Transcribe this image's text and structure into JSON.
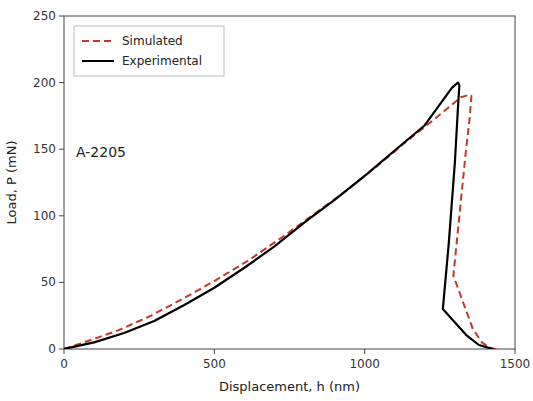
{
  "chart_data": {
    "type": "line",
    "xlabel": "Displacement, h (nm)",
    "ylabel": "Load, P (mN)",
    "annotation": "A-2205",
    "xlim": [
      0,
      1500
    ],
    "ylim": [
      0,
      250
    ],
    "xticks": [
      0,
      500,
      1000,
      1500
    ],
    "yticks": [
      0,
      50,
      100,
      150,
      200,
      250
    ],
    "grid": false,
    "legend": "upper left",
    "series": [
      {
        "name": "Simulated",
        "color": "#c0392b",
        "line_style": "dashed",
        "x": [
          0,
          80,
          180,
          280,
          390,
          500,
          610,
          720,
          830,
          940,
          1040,
          1140,
          1240,
          1320,
          1350,
          1355,
          1350,
          1335,
          1315,
          1295,
          1360,
          1390,
          1415,
          1430,
          1440
        ],
        "values": [
          0,
          6,
          14,
          24,
          37,
          51,
          66,
          83,
          101,
          119,
          137,
          156,
          174,
          189,
          191,
          190,
          175,
          145,
          100,
          55,
          15,
          5,
          1,
          0.2,
          0
        ]
      },
      {
        "name": "Experimental",
        "color": "#000000",
        "line_style": "solid",
        "x": [
          0,
          100,
          200,
          300,
          400,
          500,
          600,
          700,
          800,
          900,
          1000,
          1100,
          1200,
          1290,
          1310,
          1315,
          1310,
          1300,
          1280,
          1260,
          1340,
          1380,
          1410,
          1425,
          1430
        ],
        "values": [
          0,
          5,
          12,
          21,
          33,
          46,
          61,
          77,
          95,
          112,
          130,
          149,
          168,
          196,
          200,
          198,
          180,
          140,
          80,
          30,
          10,
          3,
          1,
          0.2,
          0
        ]
      }
    ]
  }
}
